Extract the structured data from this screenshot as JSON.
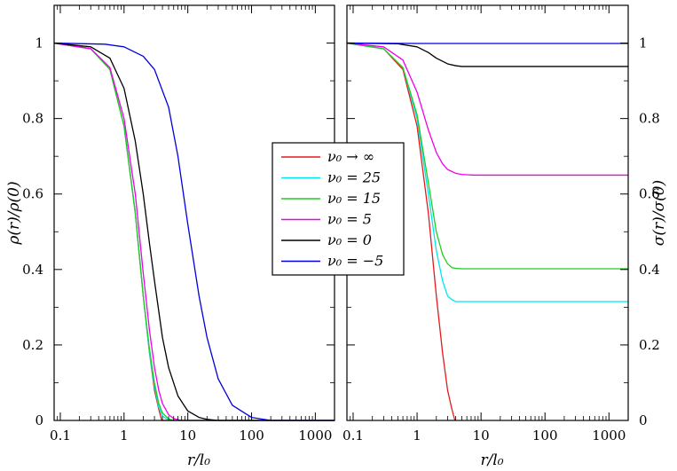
{
  "chart_data": [
    {
      "type": "line",
      "xscale": "log",
      "xlim": [
        0.08,
        2000
      ],
      "ylim": [
        0,
        1.1
      ],
      "xticks": [
        "0.1",
        "1",
        "10",
        "100",
        "1000"
      ],
      "yticks": [
        "0",
        "0.2",
        "0.4",
        "0.6",
        "0.8",
        "1"
      ],
      "xlabel": "r/l₀",
      "ylabel": "ρ(r)/ρ(0)",
      "series": [
        {
          "name": "ν₀ → ∞",
          "color": "#e31a1c",
          "x": [
            0.08,
            0.3,
            0.6,
            1.0,
            1.5,
            2.0,
            2.5,
            3.0,
            3.5,
            3.9,
            4.5,
            2000
          ],
          "y": [
            1.0,
            0.985,
            0.93,
            0.78,
            0.55,
            0.33,
            0.18,
            0.08,
            0.03,
            0.0,
            0.0,
            0.0
          ]
        },
        {
          "name": "ν₀ = 25",
          "color": "#00e5ee",
          "x": [
            0.08,
            0.3,
            0.6,
            1.0,
            1.5,
            2.0,
            2.5,
            3.0,
            3.5,
            4.0,
            5.0,
            2000
          ],
          "y": [
            1.0,
            0.985,
            0.93,
            0.78,
            0.55,
            0.33,
            0.18,
            0.09,
            0.035,
            0.012,
            0.0,
            0.0
          ]
        },
        {
          "name": "ν₀ = 15",
          "color": "#22cc22",
          "x": [
            0.08,
            0.3,
            0.6,
            1.0,
            1.5,
            2.0,
            2.5,
            3.0,
            3.5,
            4.0,
            5.0,
            6.0,
            2000
          ],
          "y": [
            1.0,
            0.985,
            0.93,
            0.78,
            0.55,
            0.33,
            0.19,
            0.1,
            0.045,
            0.02,
            0.004,
            0.0,
            0.0
          ]
        },
        {
          "name": "ν₀ = 5",
          "color": "#ee00ee",
          "x": [
            0.08,
            0.3,
            0.6,
            1.0,
            1.5,
            2.0,
            2.5,
            3.0,
            3.5,
            4.0,
            5.0,
            6.0,
            8.0,
            2000
          ],
          "y": [
            1.0,
            0.985,
            0.935,
            0.8,
            0.6,
            0.39,
            0.24,
            0.14,
            0.08,
            0.045,
            0.015,
            0.005,
            0.0,
            0.0
          ]
        },
        {
          "name": "ν₀ = 0",
          "color": "#000000",
          "x": [
            0.08,
            0.3,
            0.6,
            1.0,
            1.5,
            2.0,
            2.5,
            3.0,
            4.0,
            5.0,
            7.0,
            10,
            15,
            20,
            30,
            2000
          ],
          "y": [
            1.0,
            0.99,
            0.96,
            0.88,
            0.74,
            0.6,
            0.47,
            0.37,
            0.22,
            0.14,
            0.065,
            0.025,
            0.008,
            0.003,
            0.0,
            0.0
          ]
        },
        {
          "name": "ν₀ = −5",
          "color": "#0000dd",
          "x": [
            0.08,
            0.5,
            1.0,
            2.0,
            3.0,
            5.0,
            7.0,
            10,
            15,
            20,
            30,
            50,
            100,
            200,
            2000
          ],
          "y": [
            1.0,
            0.997,
            0.99,
            0.965,
            0.93,
            0.83,
            0.7,
            0.52,
            0.33,
            0.22,
            0.11,
            0.04,
            0.008,
            0.0,
            0.0
          ]
        }
      ]
    },
    {
      "type": "line",
      "xscale": "log",
      "xlim": [
        0.08,
        2000
      ],
      "ylim": [
        0,
        1.1
      ],
      "xticks": [
        "0.1",
        "1",
        "10",
        "100",
        "1000"
      ],
      "yticks": [
        "0",
        "0.2",
        "0.4",
        "0.6",
        "0.8",
        "1"
      ],
      "xlabel": "r/l₀",
      "ylabel": "σ(r)/σ(0)",
      "series": [
        {
          "name": "ν₀ → ∞",
          "color": "#e31a1c",
          "x": [
            0.08,
            0.3,
            0.6,
            1.0,
            1.5,
            2.0,
            2.5,
            3.0,
            3.5,
            3.9
          ],
          "y": [
            1.0,
            0.985,
            0.93,
            0.78,
            0.55,
            0.33,
            0.18,
            0.08,
            0.03,
            0.0
          ]
        },
        {
          "name": "ν₀ = 25",
          "color": "#00e5ee",
          "x": [
            0.08,
            0.3,
            0.6,
            1.0,
            1.5,
            2.0,
            2.5,
            3.0,
            3.5,
            4.0,
            5.0,
            2000
          ],
          "y": [
            1.0,
            0.985,
            0.935,
            0.8,
            0.6,
            0.45,
            0.37,
            0.33,
            0.32,
            0.315,
            0.315,
            0.315
          ]
        },
        {
          "name": "ν₀ = 15",
          "color": "#22cc22",
          "x": [
            0.08,
            0.3,
            0.6,
            1.0,
            1.5,
            2.0,
            2.5,
            3.0,
            3.5,
            4.0,
            5.0,
            2000
          ],
          "y": [
            1.0,
            0.985,
            0.935,
            0.81,
            0.63,
            0.5,
            0.44,
            0.415,
            0.405,
            0.403,
            0.402,
            0.402
          ]
        },
        {
          "name": "ν₀ = 5",
          "color": "#ee00ee",
          "x": [
            0.08,
            0.3,
            0.6,
            1.0,
            1.5,
            2.0,
            2.5,
            3.0,
            4.0,
            5.0,
            6.0,
            8.0,
            2000
          ],
          "y": [
            1.0,
            0.99,
            0.955,
            0.87,
            0.77,
            0.71,
            0.68,
            0.665,
            0.655,
            0.652,
            0.651,
            0.65,
            0.65
          ]
        },
        {
          "name": "ν₀ = 0",
          "color": "#000000",
          "x": [
            0.08,
            0.5,
            1.0,
            1.5,
            2.0,
            3.0,
            4.0,
            5.0,
            7.0,
            10,
            2000
          ],
          "y": [
            1.0,
            0.998,
            0.99,
            0.975,
            0.96,
            0.945,
            0.94,
            0.938,
            0.938,
            0.938,
            0.938
          ]
        },
        {
          "name": "ν₀ = −5",
          "color": "#0000dd",
          "x": [
            0.08,
            1.0,
            10,
            2000
          ],
          "y": [
            1.0,
            0.999,
            0.999,
            0.999
          ]
        }
      ]
    }
  ],
  "legend": {
    "placement": "center",
    "entries": [
      {
        "label": "ν₀ → ∞",
        "color": "#e31a1c"
      },
      {
        "label": "ν₀ = 25",
        "color": "#00e5ee"
      },
      {
        "label": "ν₀ = 15",
        "color": "#22cc22"
      },
      {
        "label": "ν₀ = 5",
        "color": "#ee00ee"
      },
      {
        "label": "ν₀ = 0",
        "color": "#000000"
      },
      {
        "label": "ν₀ = −5",
        "color": "#0000dd"
      }
    ]
  }
}
